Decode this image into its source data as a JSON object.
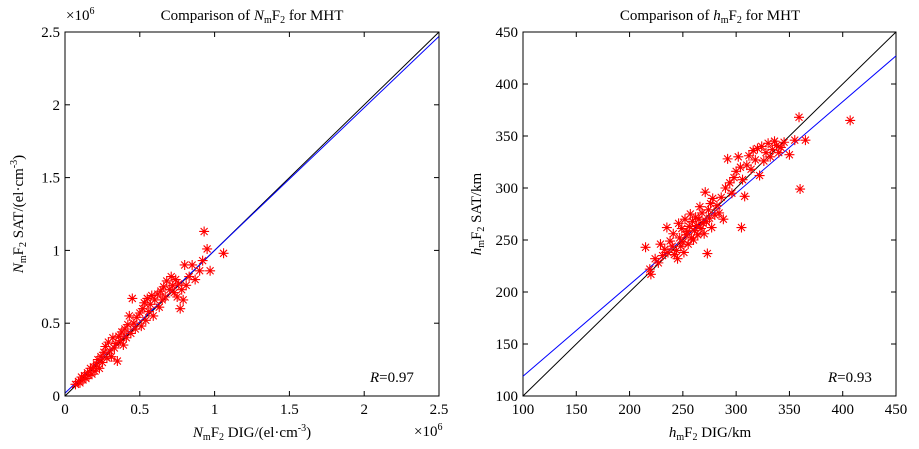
{
  "chart_data": [
    {
      "type": "scatter",
      "panel": "left",
      "title": {
        "pre": "Comparison of ",
        "sym": "N",
        "sub1": "m",
        "mid": "F",
        "sub2": "2",
        "post": " for MHT"
      },
      "xlabel": {
        "sym": "N",
        "sub1": "m",
        "mid": "F",
        "sub2": "2",
        "post": " DIG/(el·cm",
        "sup": "-3",
        "tail": ")"
      },
      "ylabel": {
        "sym": "N",
        "sub1": "m",
        "mid": "F",
        "sub2": "2",
        "post": " SAT/(el·cm",
        "sup": "-3",
        "tail": ")"
      },
      "xlim": [
        0,
        2.5
      ],
      "ylim": [
        0,
        2.5
      ],
      "xticks": [
        0,
        0.5,
        1,
        1.5,
        2,
        2.5
      ],
      "xtick_labels": [
        "0",
        "0.5",
        "1",
        "1.5",
        "2",
        "2.5"
      ],
      "yticks": [
        0,
        0.5,
        1,
        1.5,
        2,
        2.5
      ],
      "ytick_labels": [
        "0",
        "0.5",
        "1",
        "1.5",
        "2",
        "2.5"
      ],
      "exp_x": {
        "base": "×10",
        "sup": "6"
      },
      "exp_y": {
        "base": "×10",
        "sup": "6"
      },
      "r": {
        "sym": "R",
        "value": "=0.97"
      },
      "lines": [
        {
          "name": "y = x",
          "color": "#000000",
          "points": [
            [
              0,
              0
            ],
            [
              2.5,
              2.5
            ]
          ]
        },
        {
          "name": "fit",
          "color": "#0000ff",
          "points": [
            [
              0,
              0.02
            ],
            [
              2.5,
              2.47
            ]
          ]
        }
      ],
      "marker_color": "#ff0000",
      "points": [
        [
          0.07,
          0.08
        ],
        [
          0.09,
          0.1
        ],
        [
          0.1,
          0.09
        ],
        [
          0.11,
          0.13
        ],
        [
          0.12,
          0.11
        ],
        [
          0.13,
          0.14
        ],
        [
          0.14,
          0.12
        ],
        [
          0.15,
          0.16
        ],
        [
          0.16,
          0.14
        ],
        [
          0.17,
          0.19
        ],
        [
          0.18,
          0.15
        ],
        [
          0.19,
          0.2
        ],
        [
          0.2,
          0.17
        ],
        [
          0.21,
          0.22
        ],
        [
          0.22,
          0.25
        ],
        [
          0.23,
          0.19
        ],
        [
          0.24,
          0.27
        ],
        [
          0.25,
          0.23
        ],
        [
          0.26,
          0.3
        ],
        [
          0.27,
          0.34
        ],
        [
          0.28,
          0.26
        ],
        [
          0.29,
          0.37
        ],
        [
          0.3,
          0.31
        ],
        [
          0.31,
          0.27
        ],
        [
          0.32,
          0.4
        ],
        [
          0.33,
          0.33
        ],
        [
          0.34,
          0.36
        ],
        [
          0.35,
          0.24
        ],
        [
          0.36,
          0.41
        ],
        [
          0.37,
          0.38
        ],
        [
          0.38,
          0.44
        ],
        [
          0.39,
          0.35
        ],
        [
          0.4,
          0.46
        ],
        [
          0.41,
          0.4
        ],
        [
          0.42,
          0.49
        ],
        [
          0.43,
          0.55
        ],
        [
          0.44,
          0.43
        ],
        [
          0.45,
          0.67
        ],
        [
          0.46,
          0.5
        ],
        [
          0.47,
          0.46
        ],
        [
          0.48,
          0.54
        ],
        [
          0.5,
          0.57
        ],
        [
          0.51,
          0.48
        ],
        [
          0.52,
          0.6
        ],
        [
          0.53,
          0.64
        ],
        [
          0.54,
          0.52
        ],
        [
          0.55,
          0.67
        ],
        [
          0.56,
          0.58
        ],
        [
          0.57,
          0.63
        ],
        [
          0.58,
          0.69
        ],
        [
          0.59,
          0.55
        ],
        [
          0.6,
          0.66
        ],
        [
          0.62,
          0.7
        ],
        [
          0.63,
          0.61
        ],
        [
          0.64,
          0.72
        ],
        [
          0.65,
          0.66
        ],
        [
          0.66,
          0.75
        ],
        [
          0.67,
          0.68
        ],
        [
          0.68,
          0.79
        ],
        [
          0.7,
          0.73
        ],
        [
          0.71,
          0.82
        ],
        [
          0.72,
          0.76
        ],
        [
          0.73,
          0.71
        ],
        [
          0.74,
          0.8
        ],
        [
          0.75,
          0.68
        ],
        [
          0.76,
          0.77
        ],
        [
          0.77,
          0.6
        ],
        [
          0.78,
          0.73
        ],
        [
          0.79,
          0.66
        ],
        [
          0.8,
          0.9
        ],
        [
          0.81,
          0.76
        ],
        [
          0.83,
          0.82
        ],
        [
          0.85,
          0.9
        ],
        [
          0.87,
          0.8
        ],
        [
          0.9,
          0.86
        ],
        [
          0.92,
          0.93
        ],
        [
          0.93,
          1.13
        ],
        [
          0.95,
          1.01
        ],
        [
          0.97,
          0.86
        ],
        [
          1.06,
          0.98
        ]
      ]
    },
    {
      "type": "scatter",
      "panel": "right",
      "title": {
        "pre": "Comparison of ",
        "sym": "h",
        "sub1": "m",
        "mid": "F",
        "sub2": "2",
        "post": " for MHT"
      },
      "xlabel": {
        "sym": "h",
        "sub1": "m",
        "mid": "F",
        "sub2": "2",
        "post": " DIG/km"
      },
      "ylabel": {
        "sym": "h",
        "sub1": "m",
        "mid": "F",
        "sub2": "2",
        "post": " SAT/km"
      },
      "xlim": [
        100,
        450
      ],
      "ylim": [
        100,
        450
      ],
      "xticks": [
        100,
        150,
        200,
        250,
        300,
        350,
        400,
        450
      ],
      "xtick_labels": [
        "100",
        "150",
        "200",
        "250",
        "300",
        "350",
        "400",
        "450"
      ],
      "yticks": [
        100,
        150,
        200,
        250,
        300,
        350,
        400,
        450
      ],
      "ytick_labels": [
        "100",
        "150",
        "200",
        "250",
        "300",
        "350",
        "400",
        "450"
      ],
      "r": {
        "sym": "R",
        "value": "=0.93"
      },
      "lines": [
        {
          "name": "y = x",
          "color": "#000000",
          "points": [
            [
              100,
              100
            ],
            [
              450,
              450
            ]
          ]
        },
        {
          "name": "fit",
          "color": "#0000ff",
          "points": [
            [
              100,
              119
            ],
            [
              450,
              427
            ]
          ]
        }
      ],
      "marker_color": "#ff0000",
      "points": [
        [
          215,
          243
        ],
        [
          219,
          222
        ],
        [
          220,
          217
        ],
        [
          224,
          232
        ],
        [
          227,
          228
        ],
        [
          229,
          246
        ],
        [
          231,
          235
        ],
        [
          233,
          241
        ],
        [
          235,
          262
        ],
        [
          236,
          238
        ],
        [
          238,
          249
        ],
        [
          240,
          244
        ],
        [
          241,
          256
        ],
        [
          242,
          236
        ],
        [
          244,
          240
        ],
        [
          245,
          232
        ],
        [
          246,
          266
        ],
        [
          247,
          252
        ],
        [
          248,
          244
        ],
        [
          249,
          261
        ],
        [
          250,
          248
        ],
        [
          251,
          238
        ],
        [
          252,
          270
        ],
        [
          253,
          255
        ],
        [
          254,
          258
        ],
        [
          255,
          246
        ],
        [
          256,
          263
        ],
        [
          257,
          275
        ],
        [
          258,
          252
        ],
        [
          259,
          268
        ],
        [
          260,
          250
        ],
        [
          261,
          259
        ],
        [
          262,
          272
        ],
        [
          263,
          264
        ],
        [
          264,
          255
        ],
        [
          265,
          270
        ],
        [
          266,
          282
        ],
        [
          267,
          261
        ],
        [
          268,
          276
        ],
        [
          269,
          266
        ],
        [
          270,
          256
        ],
        [
          271,
          296
        ],
        [
          272,
          268
        ],
        [
          273,
          237
        ],
        [
          274,
          279
        ],
        [
          275,
          271
        ],
        [
          276,
          285
        ],
        [
          277,
          262
        ],
        [
          278,
          290
        ],
        [
          280,
          274
        ],
        [
          282,
          283
        ],
        [
          284,
          276
        ],
        [
          286,
          291
        ],
        [
          288,
          270
        ],
        [
          290,
          300
        ],
        [
          292,
          328
        ],
        [
          294,
          305
        ],
        [
          296,
          295
        ],
        [
          298,
          310
        ],
        [
          300,
          316
        ],
        [
          302,
          330
        ],
        [
          304,
          320
        ],
        [
          305,
          262
        ],
        [
          306,
          308
        ],
        [
          308,
          292
        ],
        [
          310,
          322
        ],
        [
          312,
          331
        ],
        [
          314,
          318
        ],
        [
          316,
          336
        ],
        [
          318,
          327
        ],
        [
          320,
          338
        ],
        [
          322,
          312
        ],
        [
          324,
          340
        ],
        [
          326,
          326
        ],
        [
          328,
          334
        ],
        [
          330,
          343
        ],
        [
          332,
          330
        ],
        [
          334,
          337
        ],
        [
          336,
          345
        ],
        [
          338,
          341
        ],
        [
          340,
          334
        ],
        [
          342,
          339
        ],
        [
          345,
          344
        ],
        [
          350,
          332
        ],
        [
          355,
          346
        ],
        [
          359,
          368
        ],
        [
          360,
          299
        ],
        [
          365,
          346
        ],
        [
          407,
          365
        ]
      ]
    }
  ]
}
